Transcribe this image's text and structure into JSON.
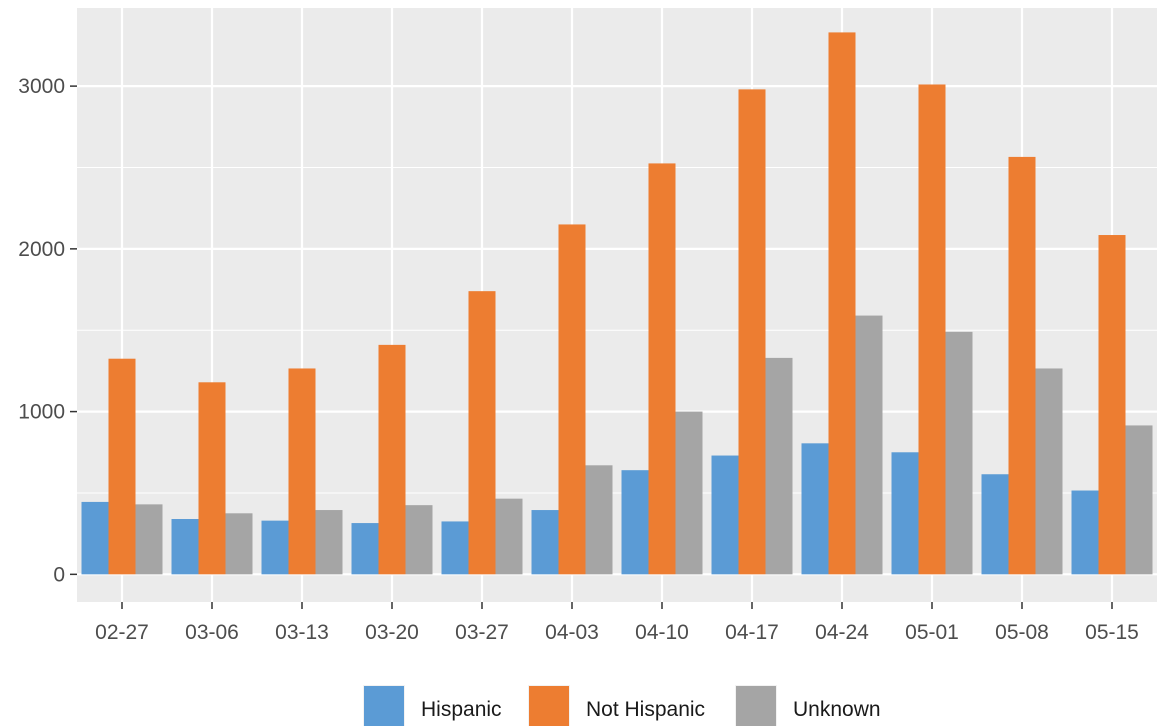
{
  "chart_data": {
    "type": "bar",
    "title": "",
    "xlabel": "",
    "ylabel": "",
    "categories": [
      "02-27",
      "03-06",
      "03-13",
      "03-20",
      "03-27",
      "04-03",
      "04-10",
      "04-17",
      "04-24",
      "05-01",
      "05-08",
      "05-15"
    ],
    "series": [
      {
        "name": "Hispanic",
        "color": "#5b9bd5",
        "values": [
          445,
          340,
          330,
          315,
          325,
          395,
          640,
          730,
          805,
          750,
          615,
          515
        ]
      },
      {
        "name": "Not Hispanic",
        "color": "#ed7d31",
        "values": [
          1325,
          1180,
          1265,
          1410,
          1740,
          2150,
          2525,
          2980,
          3330,
          3010,
          2565,
          2085
        ]
      },
      {
        "name": "Unknown",
        "color": "#a5a5a5",
        "values": [
          430,
          375,
          395,
          425,
          465,
          670,
          1000,
          1330,
          1590,
          1490,
          1265,
          915
        ]
      }
    ],
    "ylim": [
      -170,
      3480
    ],
    "yticks": [
      0,
      1000,
      2000,
      3000
    ],
    "ytick_labels": [
      "0",
      "1000",
      "2000",
      "3000"
    ],
    "grid": true,
    "legend_position": "bottom",
    "panel_background": "#ebebeb",
    "grid_color": "#ffffff"
  }
}
